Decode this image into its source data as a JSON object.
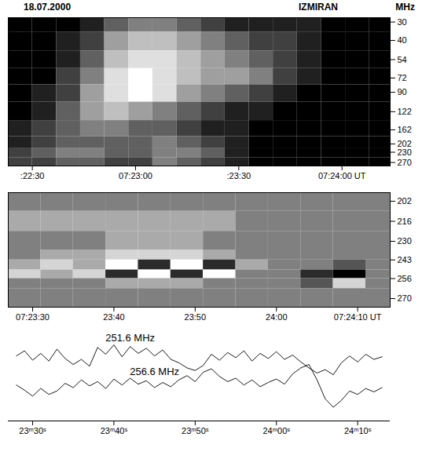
{
  "chart_data": [
    {
      "type": "heatmap",
      "title": "18.07.2000",
      "subtitle": "IZMIRAN",
      "ylabel": "MHz",
      "log": "y",
      "xlim": [
        "07:22:23",
        "07:24:14"
      ],
      "xticks": [
        {
          "value": "07:22:30",
          "label": ":22:30"
        },
        "07:23:00",
        {
          "value": "07:23:30",
          "label": ":23:30"
        },
        {
          "value": "07:24:00",
          "label": "07:24:00 UT"
        }
      ],
      "ylim": [
        28,
        285
      ],
      "yticks": [
        30,
        40,
        54,
        72,
        90,
        122,
        162,
        202,
        230,
        270
      ],
      "time_edges": [
        "07:22:23",
        "07:22:30",
        "07:22:37",
        "07:22:44",
        "07:22:51",
        "07:22:58",
        "07:23:05",
        "07:23:12",
        "07:23:19",
        "07:23:26",
        "07:23:33",
        "07:23:40",
        "07:23:47",
        "07:23:54",
        "07:24:01",
        "07:24:08",
        "07:24:14"
      ],
      "freq_edges": [
        28,
        35,
        47,
        62,
        80,
        105,
        140,
        180,
        215,
        250,
        285
      ],
      "cells": [
        [
          1,
          1,
          1,
          2,
          4,
          5,
          5,
          4,
          3,
          2,
          2,
          2,
          2,
          1,
          1,
          1
        ],
        [
          1,
          1,
          2,
          3,
          6,
          7,
          7,
          6,
          5,
          4,
          3,
          3,
          2,
          1,
          1,
          1
        ],
        [
          1,
          1,
          2,
          4,
          7,
          8,
          8,
          7,
          6,
          5,
          4,
          3,
          2,
          1,
          1,
          1
        ],
        [
          1,
          1,
          3,
          5,
          8,
          9,
          8,
          7,
          6,
          6,
          5,
          3,
          2,
          1,
          1,
          1
        ],
        [
          1,
          2,
          3,
          6,
          8,
          9,
          8,
          6,
          5,
          4,
          3,
          2,
          1,
          1,
          1,
          1
        ],
        [
          1,
          2,
          4,
          6,
          7,
          6,
          5,
          4,
          3,
          2,
          2,
          1,
          1,
          1,
          1,
          1
        ],
        [
          2,
          3,
          4,
          5,
          5,
          4,
          4,
          3,
          2,
          2,
          1,
          1,
          1,
          1,
          1,
          1
        ],
        [
          2,
          3,
          4,
          4,
          4,
          4,
          5,
          4,
          3,
          2,
          1,
          1,
          1,
          1,
          1,
          1
        ],
        [
          3,
          4,
          5,
          5,
          4,
          4,
          5,
          5,
          4,
          2,
          1,
          1,
          1,
          1,
          1,
          1
        ],
        [
          3,
          3,
          4,
          4,
          3,
          3,
          5,
          4,
          3,
          2,
          1,
          1,
          1,
          1,
          1,
          1
        ]
      ]
    },
    {
      "type": "heatmap",
      "xlim": [
        "07:23:27",
        "07:24:14"
      ],
      "xticks": [
        "07:23:30",
        {
          "value": "07:23:40",
          "label": "23:40"
        },
        {
          "value": "07:23:50",
          "label": "23:50"
        },
        {
          "value": "07:24:00",
          "label": "24:00"
        },
        {
          "value": "07:24:10",
          "label": "07:24:10 UT"
        }
      ],
      "ylim": [
        196,
        276
      ],
      "yticks": [
        202,
        216,
        230,
        243,
        256,
        270
      ],
      "time_edges": [
        "07:23:27",
        "07:23:31",
        "07:23:35",
        "07:23:39",
        "07:23:43",
        "07:23:47",
        "07:23:51",
        "07:23:55",
        "07:23:59",
        "07:24:03",
        "07:24:07",
        "07:24:11",
        "07:24:14"
      ],
      "freq_edges": [
        196,
        209,
        223,
        236,
        243,
        250,
        256,
        263,
        276
      ],
      "cells": [
        [
          5,
          5,
          5,
          5,
          5,
          5,
          5,
          5,
          5,
          5,
          5,
          5
        ],
        [
          6,
          6,
          6,
          6,
          6,
          6,
          6,
          5,
          5,
          5,
          5,
          5
        ],
        [
          5,
          5,
          5,
          6,
          6,
          6,
          5,
          5,
          5,
          5,
          5,
          5
        ],
        [
          5,
          6,
          6,
          7,
          7,
          7,
          6,
          5,
          5,
          5,
          5,
          5
        ],
        [
          6,
          7,
          6,
          8,
          3,
          8,
          3,
          6,
          5,
          5,
          4,
          5
        ],
        [
          7,
          6,
          7,
          3,
          8,
          3,
          8,
          5,
          5,
          3,
          2,
          5
        ],
        [
          5,
          5,
          5,
          6,
          6,
          6,
          5,
          5,
          5,
          4,
          7,
          5
        ],
        [
          5,
          5,
          5,
          5,
          5,
          5,
          5,
          5,
          5,
          5,
          5,
          5
        ]
      ]
    },
    {
      "type": "line",
      "tick_labels": "x",
      "xlim": [
        "07:23:27",
        "07:24:14"
      ],
      "xticks": [
        {
          "value": "07:23:30",
          "label": "23ᵐ30ˢ"
        },
        {
          "value": "07:23:40",
          "label": "23ᵐ40ˢ"
        },
        {
          "value": "07:23:50",
          "label": "23ᵐ50ˢ"
        },
        {
          "value": "07:24:00",
          "label": "24ᵐ00ˢ"
        },
        {
          "value": "07:24:10",
          "label": "24ᵐ10ˢ"
        }
      ],
      "ylim": [
        0,
        10
      ],
      "x": [
        "07:23:28",
        "07:23:29",
        "07:23:30",
        "07:23:31",
        "07:23:32",
        "07:23:33",
        "07:23:34",
        "07:23:35",
        "07:23:36",
        "07:23:37",
        "07:23:38",
        "07:23:39",
        "07:23:40",
        "07:23:41",
        "07:23:42",
        "07:23:43",
        "07:23:44",
        "07:23:45",
        "07:23:46",
        "07:23:47",
        "07:23:48",
        "07:23:49",
        "07:23:50",
        "07:23:51",
        "07:23:52",
        "07:23:53",
        "07:23:54",
        "07:23:55",
        "07:23:56",
        "07:23:57",
        "07:23:58",
        "07:23:59",
        "07:24:00",
        "07:24:01",
        "07:24:02",
        "07:24:03",
        "07:24:04",
        "07:24:05",
        "07:24:06",
        "07:24:07",
        "07:24:08",
        "07:24:09",
        "07:24:10",
        "07:24:11",
        "07:24:12",
        "07:24:13"
      ],
      "series": [
        {
          "name": "251.6 MHz",
          "color": "#000000",
          "values": [
            7.6,
            8.2,
            7.1,
            7.9,
            7.0,
            8.4,
            7.3,
            6.6,
            7.2,
            6.4,
            8.6,
            7.8,
            8.9,
            7.5,
            8.7,
            7.9,
            8.5,
            7.6,
            8.3,
            7.2,
            6.8,
            6.2,
            5.9,
            6.5,
            7.8,
            7.1,
            8.0,
            7.4,
            8.2,
            7.0,
            7.9,
            7.3,
            8.1,
            7.2,
            7.7,
            6.9,
            6.2,
            5.6,
            6.0,
            5.4,
            6.8,
            7.6,
            6.9,
            7.8,
            7.2,
            7.5
          ]
        },
        {
          "name": "256.6 MHz",
          "color": "#000000",
          "values": [
            4.2,
            3.6,
            2.9,
            3.8,
            3.1,
            3.5,
            4.4,
            3.9,
            4.8,
            4.1,
            4.6,
            3.8,
            4.9,
            4.2,
            5.0,
            4.3,
            4.7,
            3.9,
            4.5,
            4.0,
            4.8,
            5.3,
            4.6,
            5.7,
            6.1,
            5.2,
            4.6,
            5.0,
            4.2,
            4.8,
            4.0,
            4.5,
            4.9,
            4.3,
            5.5,
            6.2,
            6.6,
            4.8,
            2.6,
            1.6,
            2.4,
            3.5,
            3.1,
            3.8,
            3.4,
            3.9
          ]
        }
      ]
    }
  ]
}
